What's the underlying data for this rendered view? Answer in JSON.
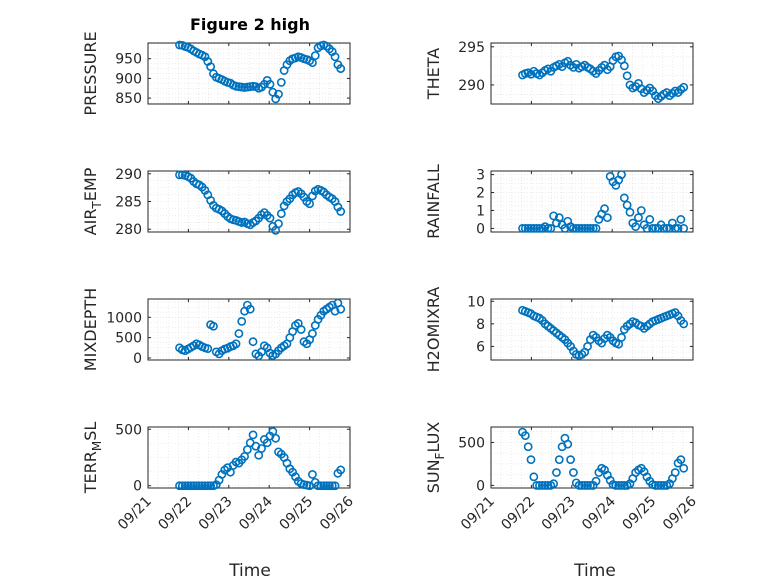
{
  "figure": {
    "title": "Figure 2 high",
    "marker_color": "#0072BD",
    "xlabel": "Time"
  },
  "chart_data": [
    {
      "type": "scatter",
      "ylabel": "PRESSURE",
      "ylabel_sub": null,
      "xlim": [
        0,
        5
      ],
      "ylim": [
        835,
        990
      ],
      "yticks": [
        850,
        900,
        950
      ],
      "xticks": [
        "09/21",
        "09/22",
        "09/23",
        "09/24",
        "09/25",
        "09/26"
      ],
      "grid": true,
      "x": [
        0.78,
        0.85,
        0.92,
        0.99,
        1.06,
        1.13,
        1.2,
        1.27,
        1.34,
        1.41,
        1.48,
        1.55,
        1.62,
        1.69,
        1.76,
        1.83,
        1.9,
        1.97,
        2.04,
        2.11,
        2.18,
        2.25,
        2.32,
        2.39,
        2.46,
        2.53,
        2.6,
        2.67,
        2.74,
        2.81,
        2.88,
        2.95,
        3.02,
        3.09,
        3.16,
        3.23,
        3.3,
        3.37,
        3.44,
        3.51,
        3.58,
        3.65,
        3.72,
        3.79,
        3.86,
        3.93,
        4.0,
        4.07,
        4.14,
        4.21,
        4.28,
        4.35,
        4.42,
        4.49,
        4.56,
        4.63,
        4.7,
        4.77
      ],
      "y": [
        985,
        984,
        981,
        979,
        975,
        970,
        966,
        962,
        959,
        955,
        943,
        930,
        912,
        903,
        900,
        897,
        893,
        890,
        888,
        883,
        880,
        879,
        878,
        877,
        878,
        879,
        880,
        879,
        875,
        878,
        885,
        895,
        885,
        865,
        848,
        860,
        890,
        920,
        935,
        945,
        950,
        952,
        955,
        953,
        950,
        948,
        945,
        940,
        958,
        978,
        983,
        985,
        982,
        975,
        968,
        955,
        935,
        925
      ]
    },
    {
      "type": "scatter",
      "ylabel": "THETA",
      "ylabel_sub": null,
      "xlim": [
        0,
        5
      ],
      "ylim": [
        287.5,
        295.5
      ],
      "yticks": [
        290,
        295
      ],
      "xticks": [
        "09/21",
        "09/22",
        "09/23",
        "09/24",
        "09/25",
        "09/26"
      ],
      "grid": true,
      "x": [
        0.78,
        0.85,
        0.92,
        0.99,
        1.06,
        1.13,
        1.2,
        1.27,
        1.34,
        1.41,
        1.48,
        1.55,
        1.62,
        1.69,
        1.76,
        1.83,
        1.9,
        1.97,
        2.04,
        2.11,
        2.18,
        2.25,
        2.32,
        2.39,
        2.46,
        2.53,
        2.6,
        2.67,
        2.74,
        2.81,
        2.88,
        2.95,
        3.02,
        3.09,
        3.16,
        3.23,
        3.3,
        3.37,
        3.44,
        3.51,
        3.58,
        3.65,
        3.72,
        3.79,
        3.86,
        3.93,
        4.0,
        4.07,
        4.14,
        4.21,
        4.28,
        4.35,
        4.42,
        4.49,
        4.56,
        4.63,
        4.7,
        4.77
      ],
      "y": [
        291.3,
        291.5,
        291.6,
        291.4,
        291.8,
        291.5,
        291.3,
        291.6,
        291.9,
        292.1,
        291.8,
        292.3,
        292.5,
        292.7,
        292.4,
        292.9,
        293.1,
        292.6,
        292.3,
        292.7,
        292.2,
        292.4,
        292.6,
        292.3,
        292.1,
        291.8,
        291.5,
        291.9,
        292.3,
        292.6,
        292.0,
        292.4,
        293.2,
        293.7,
        293.8,
        293.3,
        292.5,
        291.2,
        290.0,
        289.6,
        289.8,
        290.2,
        289.5,
        289.0,
        289.3,
        289.6,
        289.2,
        288.6,
        288.2,
        288.5,
        288.8,
        289.0,
        288.6,
        288.9,
        289.2,
        289.0,
        289.4,
        289.7
      ]
    },
    {
      "type": "scatter",
      "ylabel": "AIR",
      "ylabel_sub": "T",
      "ylabel_after": "EMP",
      "xlim": [
        0,
        5
      ],
      "ylim": [
        279.5,
        290.5
      ],
      "yticks": [
        280,
        285,
        290
      ],
      "xticks": [
        "09/21",
        "09/22",
        "09/23",
        "09/24",
        "09/25",
        "09/26"
      ],
      "grid": true,
      "x": [
        0.78,
        0.85,
        0.92,
        0.99,
        1.06,
        1.13,
        1.2,
        1.27,
        1.34,
        1.41,
        1.48,
        1.55,
        1.62,
        1.69,
        1.76,
        1.83,
        1.9,
        1.97,
        2.04,
        2.11,
        2.18,
        2.25,
        2.32,
        2.39,
        2.46,
        2.53,
        2.6,
        2.67,
        2.74,
        2.81,
        2.88,
        2.95,
        3.02,
        3.09,
        3.16,
        3.23,
        3.3,
        3.37,
        3.44,
        3.51,
        3.58,
        3.65,
        3.72,
        3.79,
        3.86,
        3.93,
        4.0,
        4.07,
        4.14,
        4.21,
        4.28,
        4.35,
        4.42,
        4.49,
        4.56,
        4.63,
        4.7,
        4.77
      ],
      "y": [
        289.8,
        289.8,
        289.7,
        289.5,
        289.2,
        288.6,
        288.2,
        288.0,
        287.6,
        287.0,
        286.2,
        285.2,
        284.3,
        283.8,
        283.6,
        283.3,
        282.8,
        282.3,
        281.9,
        281.7,
        281.6,
        281.4,
        281.2,
        281.3,
        281.0,
        280.8,
        281.2,
        281.5,
        282.0,
        282.6,
        283.0,
        282.5,
        282.0,
        280.5,
        279.8,
        281.0,
        282.8,
        284.2,
        285.0,
        285.5,
        286.2,
        286.6,
        286.8,
        286.4,
        285.8,
        285.0,
        284.6,
        286.0,
        286.9,
        287.2,
        287.0,
        286.7,
        286.2,
        285.8,
        285.5,
        285.0,
        284.0,
        283.2
      ]
    },
    {
      "type": "scatter",
      "ylabel": "RAINFALL",
      "ylabel_sub": null,
      "xlim": [
        0,
        5
      ],
      "ylim": [
        -0.2,
        3.2
      ],
      "yticks": [
        0,
        1,
        2,
        3
      ],
      "xticks": [
        "09/21",
        "09/22",
        "09/23",
        "09/24",
        "09/25",
        "09/26"
      ],
      "grid": true,
      "x": [
        0.78,
        0.85,
        0.92,
        0.99,
        1.06,
        1.13,
        1.2,
        1.27,
        1.34,
        1.41,
        1.48,
        1.55,
        1.62,
        1.69,
        1.76,
        1.83,
        1.9,
        1.97,
        2.04,
        2.11,
        2.18,
        2.25,
        2.32,
        2.39,
        2.46,
        2.53,
        2.6,
        2.67,
        2.74,
        2.81,
        2.88,
        2.95,
        3.02,
        3.09,
        3.16,
        3.23,
        3.3,
        3.37,
        3.44,
        3.51,
        3.58,
        3.65,
        3.72,
        3.79,
        3.86,
        3.93,
        4.0,
        4.07,
        4.14,
        4.21,
        4.28,
        4.35,
        4.42,
        4.49,
        4.56,
        4.63,
        4.7,
        4.77
      ],
      "y": [
        0,
        0,
        0,
        0,
        0,
        0,
        0,
        0,
        0.1,
        0,
        0,
        0.7,
        0.3,
        0.6,
        0.2,
        0,
        0.4,
        0.1,
        0,
        0,
        0,
        0,
        0,
        0,
        0,
        0,
        0,
        0.5,
        0.8,
        1.1,
        0.6,
        2.9,
        2.6,
        2.4,
        2.7,
        3.0,
        1.7,
        1.3,
        0.9,
        0.3,
        0.1,
        0.6,
        1.0,
        0.2,
        0,
        0.5,
        0,
        0,
        0,
        0.2,
        0,
        0,
        0,
        0.3,
        0,
        0,
        0.5,
        0
      ]
    },
    {
      "type": "scatter",
      "ylabel": "MIXDEPTH",
      "ylabel_sub": null,
      "xlim": [
        0,
        5
      ],
      "ylim": [
        -50,
        1450
      ],
      "yticks": [
        0,
        500,
        1000
      ],
      "xticks": [
        "09/21",
        "09/22",
        "09/23",
        "09/24",
        "09/25",
        "09/26"
      ],
      "grid": true,
      "x": [
        0.78,
        0.85,
        0.92,
        0.99,
        1.06,
        1.13,
        1.2,
        1.27,
        1.34,
        1.41,
        1.48,
        1.55,
        1.62,
        1.69,
        1.76,
        1.83,
        1.9,
        1.97,
        2.04,
        2.11,
        2.18,
        2.25,
        2.32,
        2.39,
        2.46,
        2.53,
        2.6,
        2.67,
        2.74,
        2.81,
        2.88,
        2.95,
        3.02,
        3.09,
        3.16,
        3.23,
        3.3,
        3.37,
        3.44,
        3.51,
        3.58,
        3.65,
        3.72,
        3.79,
        3.86,
        3.93,
        4.0,
        4.07,
        4.14,
        4.21,
        4.28,
        4.35,
        4.42,
        4.49,
        4.56,
        4.63,
        4.7,
        4.77
      ],
      "y": [
        250,
        200,
        180,
        220,
        260,
        300,
        350,
        320,
        280,
        250,
        230,
        820,
        780,
        150,
        100,
        180,
        220,
        240,
        280,
        300,
        350,
        600,
        900,
        1150,
        1300,
        1200,
        400,
        100,
        50,
        150,
        300,
        250,
        120,
        60,
        100,
        180,
        250,
        300,
        350,
        500,
        650,
        800,
        850,
        700,
        400,
        350,
        450,
        600,
        800,
        950,
        1050,
        1150,
        1200,
        1250,
        1300,
        1150,
        1350,
        1200
      ]
    },
    {
      "type": "scatter",
      "ylabel": "H2OMIXRA",
      "ylabel_sub": null,
      "xlim": [
        0,
        5
      ],
      "ylim": [
        4.8,
        10.2
      ],
      "yticks": [
        6,
        8,
        10
      ],
      "xticks": [
        "09/21",
        "09/22",
        "09/23",
        "09/24",
        "09/25",
        "09/26"
      ],
      "grid": true,
      "x": [
        0.78,
        0.85,
        0.92,
        0.99,
        1.06,
        1.13,
        1.2,
        1.27,
        1.34,
        1.41,
        1.48,
        1.55,
        1.62,
        1.69,
        1.76,
        1.83,
        1.9,
        1.97,
        2.04,
        2.11,
        2.18,
        2.25,
        2.32,
        2.39,
        2.46,
        2.53,
        2.6,
        2.67,
        2.74,
        2.81,
        2.88,
        2.95,
        3.02,
        3.09,
        3.16,
        3.23,
        3.3,
        3.37,
        3.44,
        3.51,
        3.58,
        3.65,
        3.72,
        3.79,
        3.86,
        3.93,
        4.0,
        4.07,
        4.14,
        4.21,
        4.28,
        4.35,
        4.42,
        4.49,
        4.56,
        4.63,
        4.7,
        4.77
      ],
      "y": [
        9.2,
        9.1,
        9.0,
        8.9,
        8.7,
        8.6,
        8.5,
        8.3,
        8.0,
        7.8,
        7.6,
        7.4,
        7.2,
        7.0,
        6.8,
        6.6,
        6.3,
        6.0,
        5.6,
        5.3,
        5.2,
        5.3,
        5.5,
        6.0,
        6.6,
        7.0,
        6.8,
        6.5,
        6.3,
        6.7,
        7.0,
        6.8,
        6.5,
        6.3,
        6.2,
        6.8,
        7.5,
        7.8,
        8.0,
        8.2,
        8.1,
        7.9,
        7.8,
        7.6,
        7.8,
        8.0,
        8.2,
        8.3,
        8.4,
        8.5,
        8.6,
        8.7,
        8.8,
        8.9,
        9.0,
        8.7,
        8.3,
        8.0
      ]
    },
    {
      "type": "scatter",
      "ylabel": "TERR",
      "ylabel_sub": "M",
      "ylabel_after": "SL",
      "xlim": [
        0,
        5
      ],
      "ylim": [
        -20,
        520
      ],
      "yticks": [
        0,
        500
      ],
      "xticks": [
        "09/21",
        "09/22",
        "09/23",
        "09/24",
        "09/25",
        "09/26"
      ],
      "grid": true,
      "x": [
        0.78,
        0.85,
        0.92,
        0.99,
        1.06,
        1.13,
        1.2,
        1.27,
        1.34,
        1.41,
        1.48,
        1.55,
        1.62,
        1.69,
        1.76,
        1.83,
        1.9,
        1.97,
        2.04,
        2.11,
        2.18,
        2.25,
        2.32,
        2.39,
        2.46,
        2.53,
        2.6,
        2.67,
        2.74,
        2.81,
        2.88,
        2.95,
        3.02,
        3.09,
        3.16,
        3.23,
        3.3,
        3.37,
        3.44,
        3.51,
        3.58,
        3.65,
        3.72,
        3.79,
        3.86,
        3.93,
        4.0,
        4.07,
        4.14,
        4.21,
        4.28,
        4.35,
        4.42,
        4.49,
        4.56,
        4.63,
        4.7,
        4.77
      ],
      "y": [
        0,
        0,
        0,
        0,
        0,
        0,
        0,
        0,
        0,
        0,
        0,
        0,
        0,
        10,
        50,
        100,
        140,
        160,
        120,
        180,
        210,
        200,
        230,
        260,
        320,
        380,
        450,
        350,
        270,
        330,
        410,
        380,
        440,
        480,
        420,
        300,
        280,
        250,
        200,
        150,
        120,
        80,
        40,
        20,
        10,
        5,
        0,
        100,
        30,
        0,
        0,
        0,
        0,
        0,
        0,
        0,
        110,
        140
      ]
    },
    {
      "type": "scatter",
      "ylabel": "SUN",
      "ylabel_sub": "F",
      "ylabel_after": "LUX",
      "xlim": [
        0,
        5
      ],
      "ylim": [
        -30,
        680
      ],
      "yticks": [
        0,
        500
      ],
      "xticks": [
        "09/21",
        "09/22",
        "09/23",
        "09/24",
        "09/25",
        "09/26"
      ],
      "grid": true,
      "x": [
        0.78,
        0.85,
        0.92,
        0.99,
        1.06,
        1.13,
        1.2,
        1.27,
        1.34,
        1.41,
        1.48,
        1.55,
        1.62,
        1.69,
        1.76,
        1.83,
        1.9,
        1.97,
        2.04,
        2.11,
        2.18,
        2.25,
        2.32,
        2.39,
        2.46,
        2.53,
        2.6,
        2.67,
        2.74,
        2.81,
        2.88,
        2.95,
        3.02,
        3.09,
        3.16,
        3.23,
        3.3,
        3.37,
        3.44,
        3.51,
        3.58,
        3.65,
        3.72,
        3.79,
        3.86,
        3.93,
        4.0,
        4.07,
        4.14,
        4.21,
        4.28,
        4.35,
        4.42,
        4.49,
        4.56,
        4.63,
        4.7,
        4.77
      ],
      "y": [
        620,
        580,
        450,
        300,
        100,
        0,
        0,
        0,
        0,
        0,
        0,
        20,
        150,
        300,
        450,
        550,
        480,
        300,
        150,
        30,
        0,
        0,
        0,
        0,
        0,
        0,
        50,
        150,
        200,
        180,
        120,
        60,
        10,
        0,
        0,
        0,
        0,
        0,
        20,
        80,
        150,
        180,
        200,
        160,
        100,
        50,
        10,
        0,
        0,
        0,
        0,
        0,
        20,
        80,
        150,
        260,
        300,
        200
      ]
    }
  ]
}
